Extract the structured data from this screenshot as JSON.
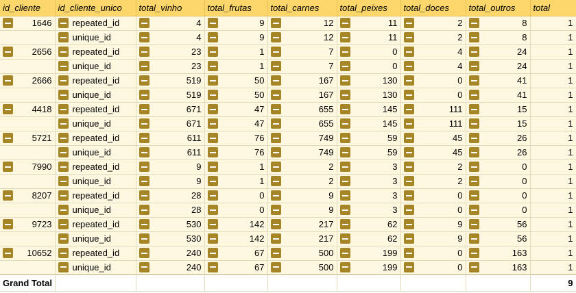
{
  "headers": [
    "id_cliente",
    "id_cliente_unico",
    "total_vinho",
    "total_frutas",
    "total_carnes",
    "total_peixes",
    "total_doces",
    "total_outros",
    "total"
  ],
  "groups": [
    {
      "id": "1646",
      "rows": [
        {
          "label": "repeated_id",
          "vinho": "4",
          "frutas": "9",
          "carnes": "12",
          "peixes": "11",
          "doces": "2",
          "outros": "8",
          "total": "1"
        },
        {
          "label": "unique_id",
          "vinho": "4",
          "frutas": "9",
          "carnes": "12",
          "peixes": "11",
          "doces": "2",
          "outros": "8",
          "total": "1"
        }
      ]
    },
    {
      "id": "2656",
      "rows": [
        {
          "label": "repeated_id",
          "vinho": "23",
          "frutas": "1",
          "carnes": "7",
          "peixes": "0",
          "doces": "4",
          "outros": "24",
          "total": "1"
        },
        {
          "label": "unique_id",
          "vinho": "23",
          "frutas": "1",
          "carnes": "7",
          "peixes": "0",
          "doces": "4",
          "outros": "24",
          "total": "1"
        }
      ]
    },
    {
      "id": "2666",
      "rows": [
        {
          "label": "repeated_id",
          "vinho": "519",
          "frutas": "50",
          "carnes": "167",
          "peixes": "130",
          "doces": "0",
          "outros": "41",
          "total": "1"
        },
        {
          "label": "unique_id",
          "vinho": "519",
          "frutas": "50",
          "carnes": "167",
          "peixes": "130",
          "doces": "0",
          "outros": "41",
          "total": "1"
        }
      ]
    },
    {
      "id": "4418",
      "rows": [
        {
          "label": "repeated_id",
          "vinho": "671",
          "frutas": "47",
          "carnes": "655",
          "peixes": "145",
          "doces": "111",
          "outros": "15",
          "total": "1"
        },
        {
          "label": "unique_id",
          "vinho": "671",
          "frutas": "47",
          "carnes": "655",
          "peixes": "145",
          "doces": "111",
          "outros": "15",
          "total": "1"
        }
      ]
    },
    {
      "id": "5721",
      "rows": [
        {
          "label": "repeated_id",
          "vinho": "611",
          "frutas": "76",
          "carnes": "749",
          "peixes": "59",
          "doces": "45",
          "outros": "26",
          "total": "1"
        },
        {
          "label": "unique_id",
          "vinho": "611",
          "frutas": "76",
          "carnes": "749",
          "peixes": "59",
          "doces": "45",
          "outros": "26",
          "total": "1"
        }
      ]
    },
    {
      "id": "7990",
      "rows": [
        {
          "label": "repeated_id",
          "vinho": "9",
          "frutas": "1",
          "carnes": "2",
          "peixes": "3",
          "doces": "2",
          "outros": "0",
          "total": "1"
        },
        {
          "label": "unique_id",
          "vinho": "9",
          "frutas": "1",
          "carnes": "2",
          "peixes": "3",
          "doces": "2",
          "outros": "0",
          "total": "1"
        }
      ]
    },
    {
      "id": "8207",
      "rows": [
        {
          "label": "repeated_id",
          "vinho": "28",
          "frutas": "0",
          "carnes": "9",
          "peixes": "3",
          "doces": "0",
          "outros": "0",
          "total": "1"
        },
        {
          "label": "unique_id",
          "vinho": "28",
          "frutas": "0",
          "carnes": "9",
          "peixes": "3",
          "doces": "0",
          "outros": "0",
          "total": "1"
        }
      ]
    },
    {
      "id": "9723",
      "rows": [
        {
          "label": "repeated_id",
          "vinho": "530",
          "frutas": "142",
          "carnes": "217",
          "peixes": "62",
          "doces": "9",
          "outros": "56",
          "total": "1"
        },
        {
          "label": "unique_id",
          "vinho": "530",
          "frutas": "142",
          "carnes": "217",
          "peixes": "62",
          "doces": "9",
          "outros": "56",
          "total": "1"
        }
      ]
    },
    {
      "id": "10652",
      "rows": [
        {
          "label": "repeated_id",
          "vinho": "240",
          "frutas": "67",
          "carnes": "500",
          "peixes": "199",
          "doces": "0",
          "outros": "163",
          "total": "1"
        },
        {
          "label": "unique_id",
          "vinho": "240",
          "frutas": "67",
          "carnes": "500",
          "peixes": "199",
          "doces": "0",
          "outros": "163",
          "total": "1"
        }
      ]
    }
  ],
  "grand_total": {
    "label": "Grand Total",
    "total": "9"
  },
  "colors": {
    "header_bg": "#fbd76b",
    "row_bg": "#fff8e1",
    "button_bg": "#a68526"
  },
  "icons": {
    "collapse": "collapse-minus-icon"
  }
}
